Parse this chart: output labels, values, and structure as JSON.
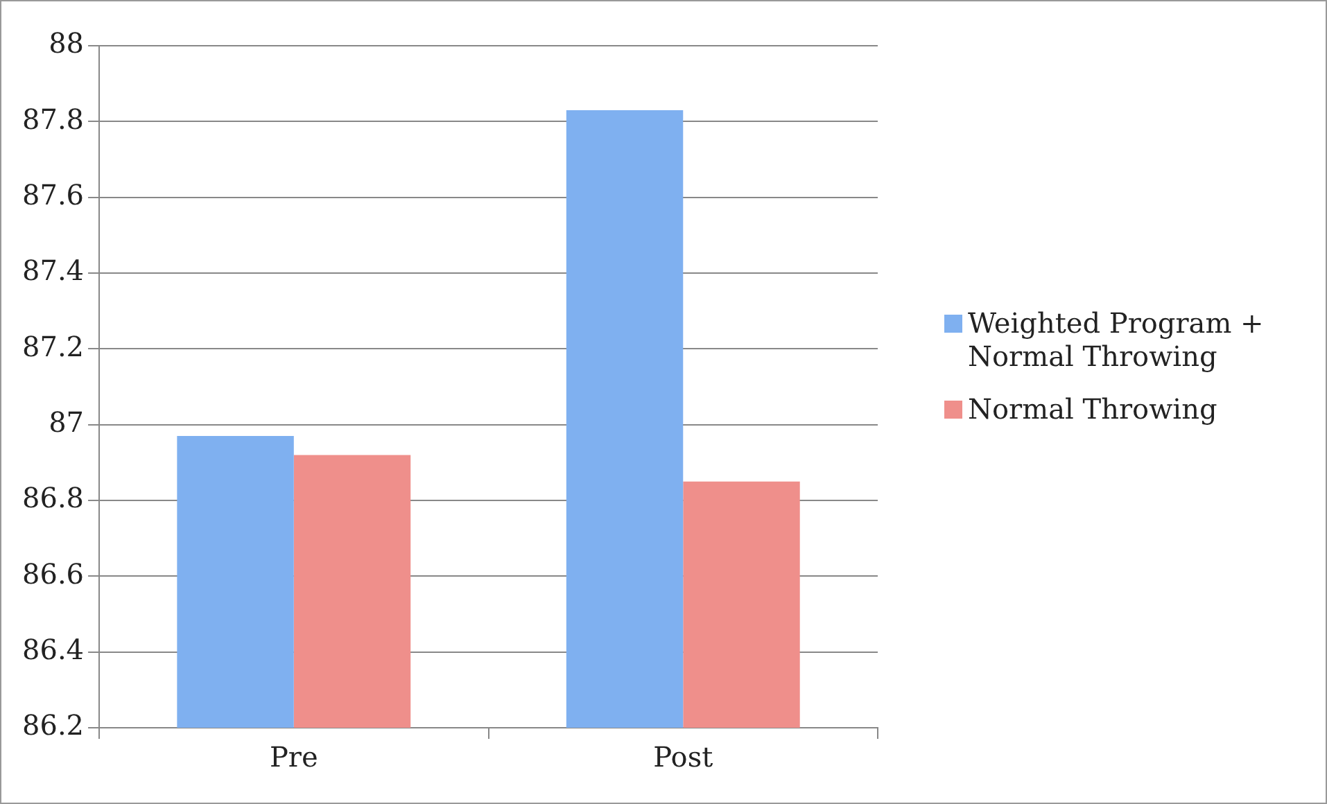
{
  "chart_data": {
    "type": "bar",
    "categories": [
      "Pre",
      "Post"
    ],
    "series": [
      {
        "name": "Weighted Program + Normal Throwing",
        "color": "#7fb0f0",
        "values": [
          86.97,
          87.83
        ]
      },
      {
        "name": "Normal Throwing",
        "color": "#ef8f8b",
        "values": [
          86.92,
          86.85
        ]
      }
    ],
    "ylim": [
      86.2,
      88
    ],
    "yticks": [
      86.2,
      86.4,
      86.6,
      86.8,
      87,
      87.2,
      87.4,
      87.6,
      87.8,
      88
    ],
    "grid": "y",
    "legend": "right"
  }
}
